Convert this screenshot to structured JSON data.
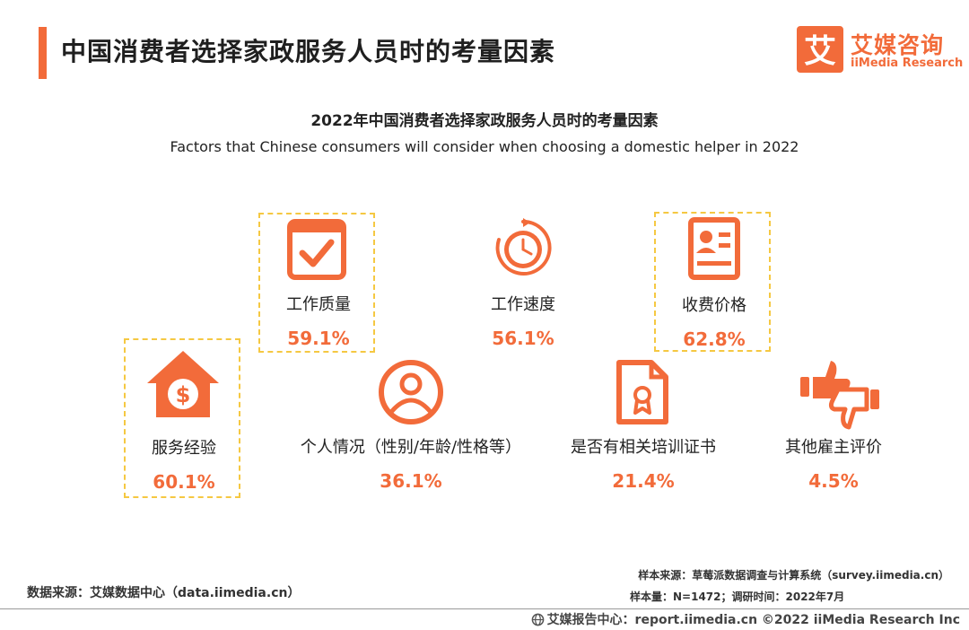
{
  "header": {
    "title": "中国消费者选择家政服务人员时的考量因素",
    "logo_cn": "艾媒咨询",
    "logo_en": "iiMedia Research",
    "logo_glyph": "艾"
  },
  "chart_data": {
    "type": "table",
    "title": "2022年中国消费者选择家政服务人员时的考量因素",
    "subtitle": "Factors that Chinese consumers will consider when choosing a domestic helper in 2022",
    "unit": "%",
    "accent_color": "#f26b3a",
    "highlight_color": "#f5c842",
    "factors": [
      {
        "label": "工作质量",
        "value": 59.1,
        "display": "59.1%",
        "icon": "checkbox-icon",
        "highlighted": true
      },
      {
        "label": "工作速度",
        "value": 56.1,
        "display": "56.1%",
        "icon": "clock-icon",
        "highlighted": false
      },
      {
        "label": "收费价格",
        "value": 62.8,
        "display": "62.8%",
        "icon": "price-card-icon",
        "highlighted": true
      },
      {
        "label": "服务经验",
        "value": 60.1,
        "display": "60.1%",
        "icon": "house-dollar-icon",
        "highlighted": true
      },
      {
        "label": "个人情况（性别/年龄/性格等）",
        "value": 36.1,
        "display": "36.1%",
        "icon": "person-icon",
        "highlighted": false
      },
      {
        "label": "是否有相关培训证书",
        "value": 21.4,
        "display": "21.4%",
        "icon": "certificate-icon",
        "highlighted": false
      },
      {
        "label": "其他雇主评价",
        "value": 4.5,
        "display": "4.5%",
        "icon": "thumbs-up-down-icon",
        "highlighted": false
      }
    ]
  },
  "footer": {
    "data_source": "数据来源：艾媒数据中心（data.iimedia.cn）",
    "sample_source": "样本来源：草莓派数据调查与计算系统（survey.iimedia.cn）",
    "sample_size": "样本量：N=1472；调研时间：2022年7月",
    "copyright": "艾媒报告中心：report.iimedia.cn   ©2022  iiMedia Research  Inc"
  }
}
